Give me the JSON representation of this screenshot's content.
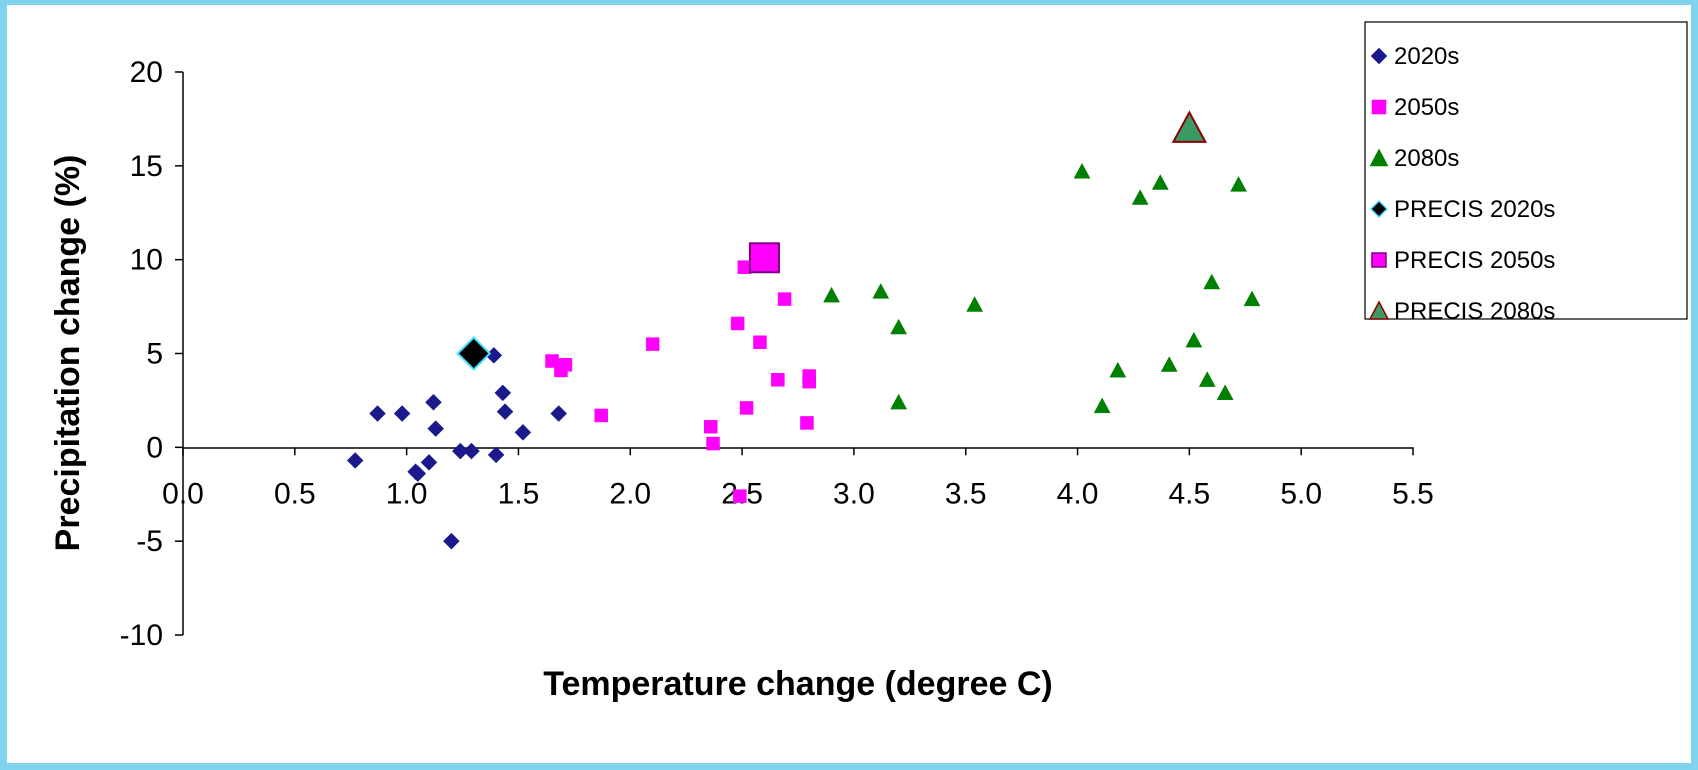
{
  "chart_data": {
    "type": "scatter",
    "title": "",
    "xlabel": "Temperature change (degree C)",
    "ylabel": "Precipitation change (%)",
    "xlim": [
      0,
      5.5
    ],
    "ylim": [
      -10,
      20
    ],
    "xticks": [
      "0.0",
      "0.5",
      "1.0",
      "1.5",
      "2.0",
      "2.5",
      "3.0",
      "3.5",
      "4.0",
      "4.5",
      "5.0",
      "5.5"
    ],
    "yticks": [
      "-10",
      "-5",
      "0",
      "5",
      "10",
      "15",
      "20"
    ],
    "grid": false,
    "legend_position": "top-right",
    "series": [
      {
        "name": "2020s",
        "marker": "diamond",
        "color": "#1a1a8c",
        "points": [
          [
            0.77,
            -0.7
          ],
          [
            0.87,
            1.8
          ],
          [
            0.98,
            1.8
          ],
          [
            1.04,
            -1.3
          ],
          [
            1.05,
            -1.4
          ],
          [
            1.1,
            -0.8
          ],
          [
            1.12,
            2.4
          ],
          [
            1.13,
            1.0
          ],
          [
            1.2,
            -5.0
          ],
          [
            1.24,
            -0.2
          ],
          [
            1.29,
            -0.2
          ],
          [
            1.39,
            4.9
          ],
          [
            1.4,
            -0.4
          ],
          [
            1.43,
            2.9
          ],
          [
            1.44,
            1.9
          ],
          [
            1.52,
            0.8
          ],
          [
            1.68,
            1.8
          ]
        ]
      },
      {
        "name": "2050s",
        "marker": "square",
        "color": "#ff00ff",
        "points": [
          [
            1.65,
            4.6
          ],
          [
            1.69,
            4.1
          ],
          [
            1.71,
            4.4
          ],
          [
            1.87,
            1.7
          ],
          [
            2.1,
            5.5
          ],
          [
            2.36,
            1.1
          ],
          [
            2.37,
            0.2
          ],
          [
            2.48,
            6.6
          ],
          [
            2.49,
            -2.6
          ],
          [
            2.51,
            9.6
          ],
          [
            2.52,
            2.1
          ],
          [
            2.58,
            5.6
          ],
          [
            2.66,
            3.6
          ],
          [
            2.69,
            7.9
          ],
          [
            2.79,
            1.3
          ],
          [
            2.8,
            3.8
          ],
          [
            2.8,
            3.5
          ]
        ]
      },
      {
        "name": "2080s",
        "marker": "triangle",
        "color": "#008000",
        "points": [
          [
            2.9,
            8.1
          ],
          [
            3.12,
            8.3
          ],
          [
            3.2,
            6.4
          ],
          [
            3.2,
            2.4
          ],
          [
            3.54,
            7.6
          ],
          [
            4.02,
            14.7
          ],
          [
            4.11,
            2.2
          ],
          [
            4.18,
            4.1
          ],
          [
            4.28,
            13.3
          ],
          [
            4.37,
            14.1
          ],
          [
            4.41,
            4.4
          ],
          [
            4.52,
            5.7
          ],
          [
            4.58,
            3.6
          ],
          [
            4.6,
            8.8
          ],
          [
            4.66,
            2.9
          ],
          [
            4.72,
            14.0
          ],
          [
            4.78,
            7.9
          ]
        ]
      },
      {
        "name": "PRECIS 2020s",
        "marker": "diamond-large",
        "color": "#000000",
        "stroke": "#40e0ff",
        "points": [
          [
            1.3,
            5.0
          ]
        ]
      },
      {
        "name": "PRECIS 2050s",
        "marker": "square-large",
        "color": "#ff00ff",
        "stroke": "#800080",
        "points": [
          [
            2.6,
            10.1
          ]
        ]
      },
      {
        "name": "PRECIS 2080s",
        "marker": "triangle-large",
        "color": "#3a9a64",
        "stroke": "#8b0000",
        "points": [
          [
            4.5,
            17.0
          ]
        ]
      }
    ]
  }
}
